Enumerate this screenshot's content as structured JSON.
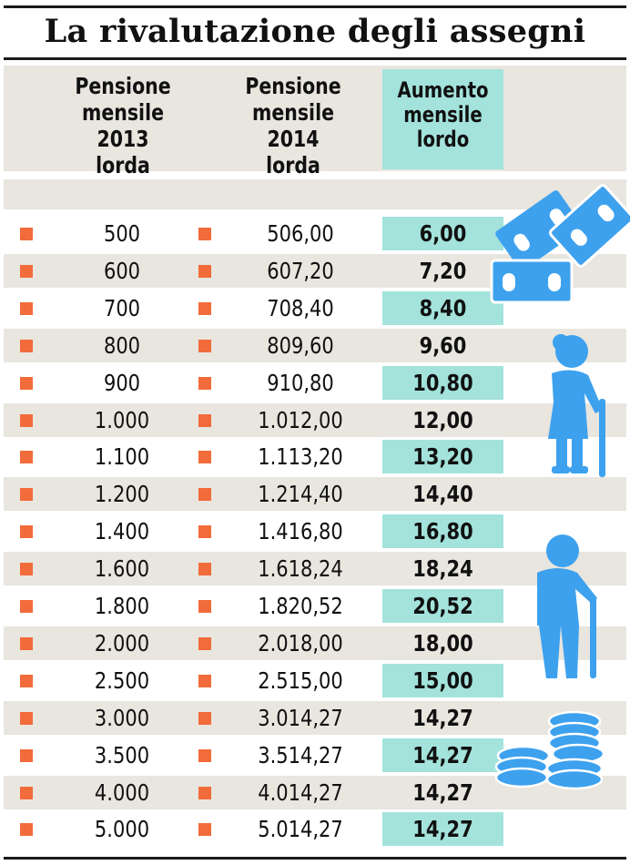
{
  "title": "La rivalutazione degli assegni",
  "headers": {
    "col1": [
      "Pensione",
      "mensile 2013",
      "lorda"
    ],
    "col2": [
      "Pensione",
      "mensile 2014",
      "lorda"
    ],
    "col3": [
      "Aumento",
      "mensile",
      "lordo"
    ]
  },
  "colors": {
    "accent": "#a3e3dc",
    "bullet": "#f26b3a",
    "icon": "#3da1ee",
    "band": "#e8e6df"
  },
  "icons": [
    "banknotes-icon",
    "elderly-woman-icon",
    "elderly-man-icon",
    "coins-icon"
  ],
  "chart_data": {
    "type": "table",
    "title": "La rivalutazione degli assegni",
    "columns": [
      "Pensione mensile 2013 lorda",
      "Pensione mensile 2014 lorda",
      "Aumento mensile lordo"
    ],
    "rows": [
      [
        "500",
        "506,00",
        "6,00"
      ],
      [
        "600",
        "607,20",
        "7,20"
      ],
      [
        "700",
        "708,40",
        "8,40"
      ],
      [
        "800",
        "809,60",
        "9,60"
      ],
      [
        "900",
        "910,80",
        "10,80"
      ],
      [
        "1.000",
        "1.012,00",
        "12,00"
      ],
      [
        "1.100",
        "1.113,20",
        "13,20"
      ],
      [
        "1.200",
        "1.214,40",
        "14,40"
      ],
      [
        "1.400",
        "1.416,80",
        "16,80"
      ],
      [
        "1.600",
        "1.618,24",
        "18,24"
      ],
      [
        "1.800",
        "1.820,52",
        "20,52"
      ],
      [
        "2.000",
        "2.018,00",
        "18,00"
      ],
      [
        "2.500",
        "2.515,00",
        "15,00"
      ],
      [
        "3.000",
        "3.014,27",
        "14,27"
      ],
      [
        "3.500",
        "3.514,27",
        "14,27"
      ],
      [
        "4.000",
        "4.014,27",
        "14,27"
      ],
      [
        "5.000",
        "5.014,27",
        "14,27"
      ]
    ]
  }
}
